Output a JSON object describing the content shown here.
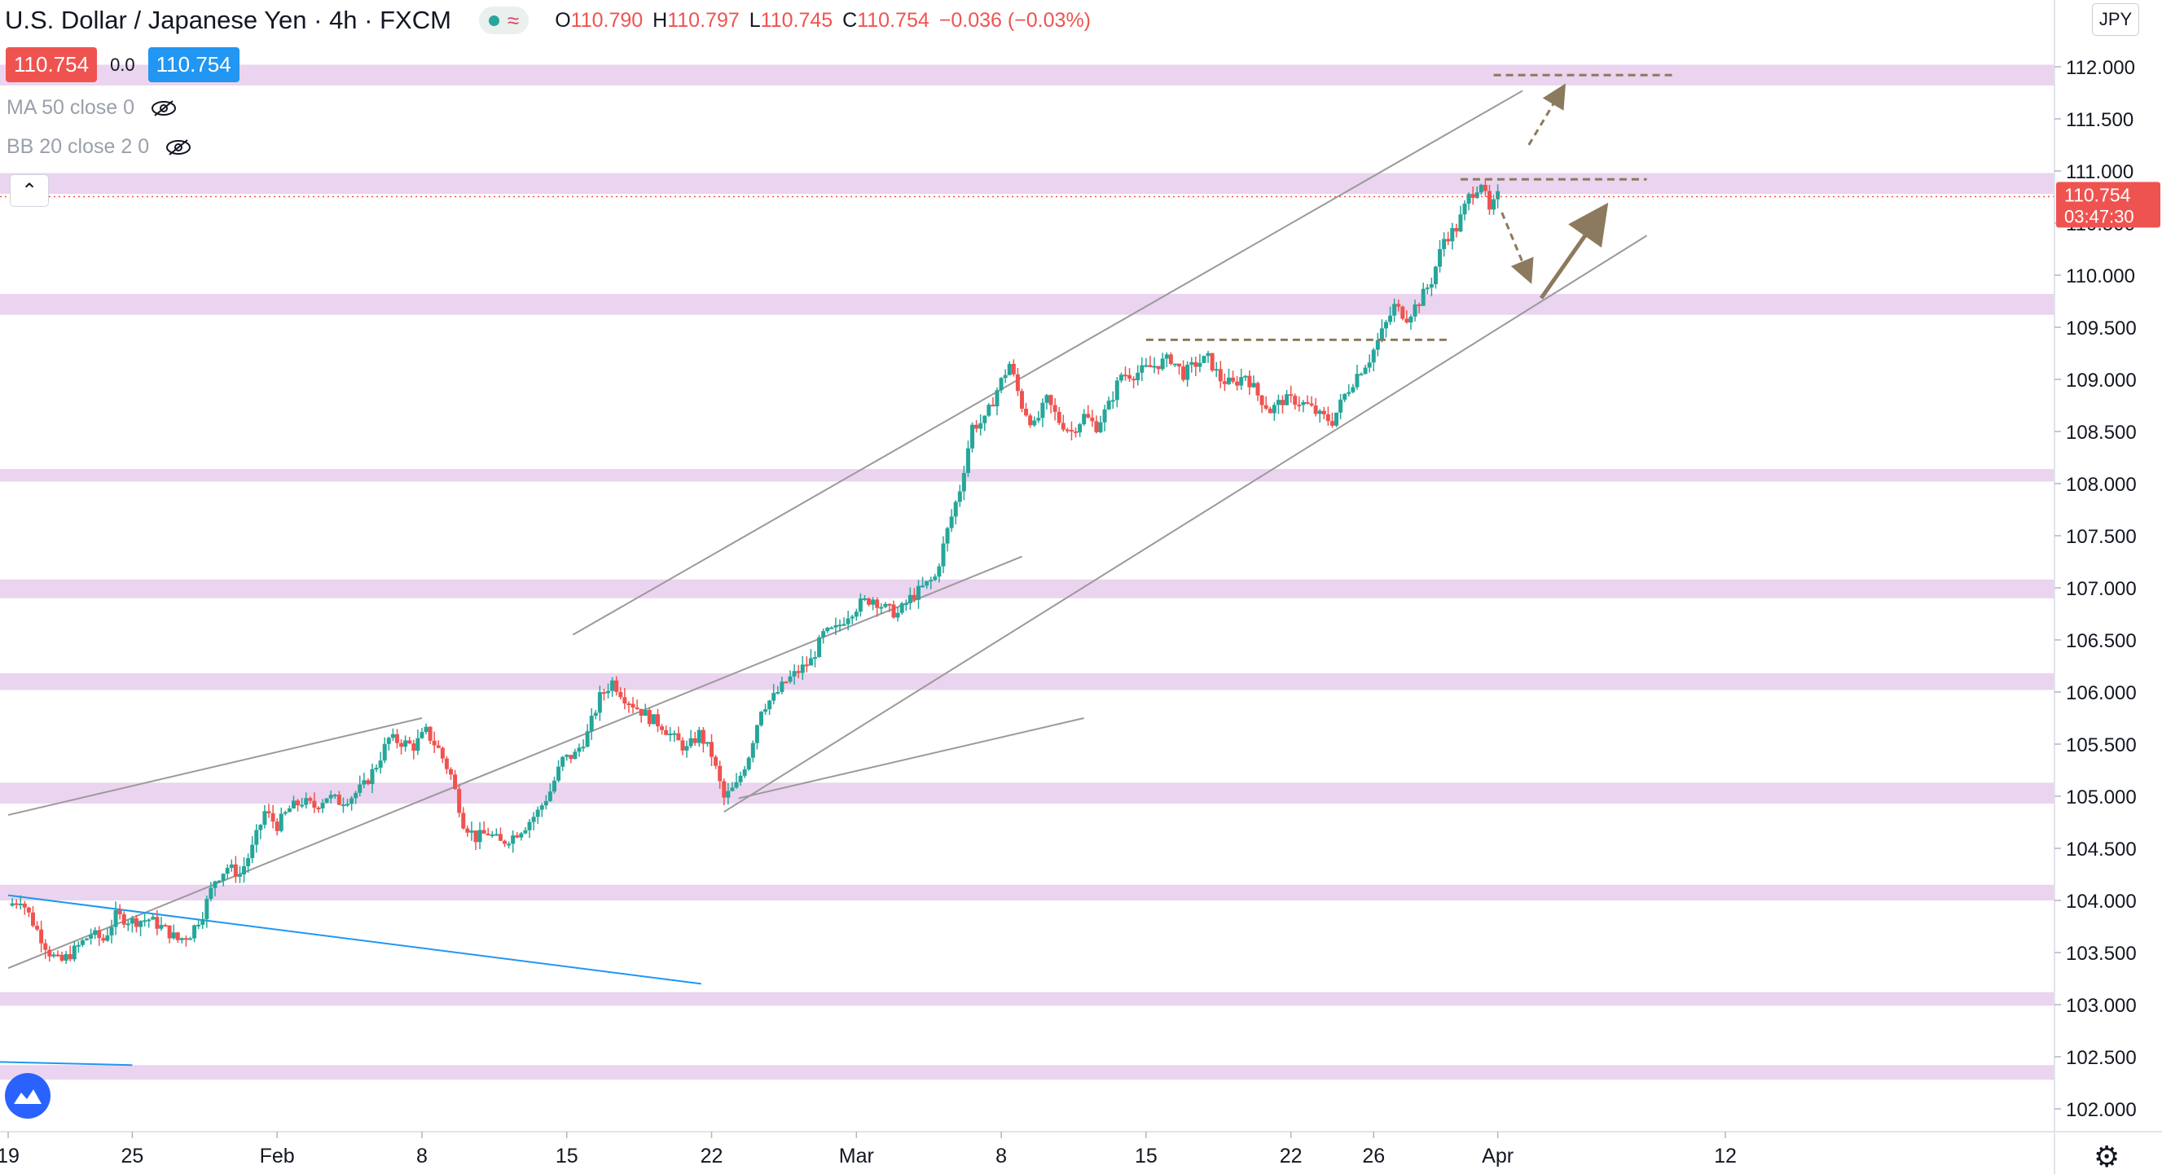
{
  "header": {
    "title": "U.S. Dollar / Japanese Yen · 4h · FXCM",
    "open_label": "O",
    "open": "110.790",
    "high_label": "H",
    "high": "110.797",
    "low_label": "L",
    "low": "110.745",
    "close_label": "C",
    "close": "110.754",
    "change": "−0.036 (−0.03%)"
  },
  "trade": {
    "sell_price": "110.754",
    "spread": "0.0",
    "buy_price": "110.754"
  },
  "indicators": [
    {
      "label": "MA 50 close 0"
    },
    {
      "label": "BB 20 close 2 0"
    }
  ],
  "currency_button": "JPY",
  "current_price_label": {
    "price": "110.754",
    "countdown": "03:47:30"
  },
  "colors": {
    "up": "#26a69a",
    "down": "#ef5350",
    "zone": "#e4c6ea",
    "channel": "#9a9a9a",
    "blue_line": "#2196f3",
    "arrow": "#8c7a5e",
    "buy_button": "#2196f3",
    "sell_button": "#ef5350",
    "logo": "#2962ff"
  },
  "icons": {
    "visibility_off": "eye-off-icon",
    "collapse": "chevron-up-icon",
    "brand": "tradingview-logo-icon",
    "settings": "gear-icon"
  },
  "chart_data": {
    "type": "candlestick",
    "title": "U.S. Dollar / Japanese Yen · 4h · FXCM",
    "xlabel": "",
    "ylabel": "",
    "ylim": [
      101.85,
      112.55
    ],
    "y_ticks": [
      "112.000",
      "111.500",
      "111.000",
      "110.500",
      "110.000",
      "109.500",
      "109.000",
      "108.500",
      "108.000",
      "107.500",
      "107.000",
      "106.500",
      "106.000",
      "105.500",
      "105.000",
      "104.500",
      "104.000",
      "103.500",
      "103.000",
      "102.500",
      "102.000"
    ],
    "x_ticks": [
      {
        "label": "19",
        "day": 0
      },
      {
        "label": "25",
        "day": 6
      },
      {
        "label": "Feb",
        "day": 13
      },
      {
        "label": "8",
        "day": 20
      },
      {
        "label": "15",
        "day": 27
      },
      {
        "label": "22",
        "day": 34
      },
      {
        "label": "Mar",
        "day": 41
      },
      {
        "label": "8",
        "day": 48
      },
      {
        "label": "15",
        "day": 55
      },
      {
        "label": "22",
        "day": 62
      },
      {
        "label": "26",
        "day": 66
      },
      {
        "label": "Apr",
        "day": 72
      },
      {
        "label": "12",
        "day": 83
      }
    ],
    "close_path": [
      [
        0.0,
        103.95
      ],
      [
        0.6,
        104.02
      ],
      [
        1.3,
        103.75
      ],
      [
        2.0,
        103.5
      ],
      [
        2.5,
        103.4
      ],
      [
        3.2,
        103.52
      ],
      [
        4.0,
        103.68
      ],
      [
        4.6,
        103.62
      ],
      [
        5.2,
        103.85
      ],
      [
        6.0,
        103.8
      ],
      [
        6.8,
        103.82
      ],
      [
        7.6,
        103.72
      ],
      [
        8.2,
        103.62
      ],
      [
        8.8,
        103.68
      ],
      [
        9.4,
        103.88
      ],
      [
        10.0,
        104.2
      ],
      [
        10.6,
        104.32
      ],
      [
        11.2,
        104.25
      ],
      [
        11.8,
        104.5
      ],
      [
        12.4,
        104.85
      ],
      [
        13.0,
        104.72
      ],
      [
        13.6,
        104.88
      ],
      [
        14.2,
        104.95
      ],
      [
        14.8,
        104.9
      ],
      [
        15.4,
        105.0
      ],
      [
        16.0,
        104.95
      ],
      [
        16.6,
        105.0
      ],
      [
        17.2,
        105.1
      ],
      [
        17.8,
        105.3
      ],
      [
        18.4,
        105.55
      ],
      [
        19.0,
        105.52
      ],
      [
        19.6,
        105.48
      ],
      [
        20.2,
        105.62
      ],
      [
        20.8,
        105.45
      ],
      [
        21.4,
        105.2
      ],
      [
        22.0,
        104.75
      ],
      [
        22.6,
        104.6
      ],
      [
        23.2,
        104.65
      ],
      [
        23.8,
        104.55
      ],
      [
        24.4,
        104.62
      ],
      [
        25.0,
        104.72
      ],
      [
        25.6,
        104.85
      ],
      [
        26.2,
        105.05
      ],
      [
        26.8,
        105.35
      ],
      [
        27.4,
        105.4
      ],
      [
        28.0,
        105.6
      ],
      [
        28.6,
        105.95
      ],
      [
        29.2,
        106.1
      ],
      [
        29.8,
        105.95
      ],
      [
        30.4,
        105.85
      ],
      [
        31.0,
        105.75
      ],
      [
        31.6,
        105.68
      ],
      [
        32.2,
        105.55
      ],
      [
        32.8,
        105.45
      ],
      [
        33.4,
        105.6
      ],
      [
        34.0,
        105.4
      ],
      [
        34.6,
        104.98
      ],
      [
        35.2,
        105.1
      ],
      [
        35.8,
        105.4
      ],
      [
        36.4,
        105.85
      ],
      [
        37.0,
        105.95
      ],
      [
        37.6,
        106.1
      ],
      [
        38.2,
        106.2
      ],
      [
        38.8,
        106.3
      ],
      [
        39.4,
        106.55
      ],
      [
        40.0,
        106.6
      ],
      [
        40.6,
        106.75
      ],
      [
        41.2,
        106.85
      ],
      [
        41.8,
        106.9
      ],
      [
        42.4,
        106.8
      ],
      [
        43.0,
        106.75
      ],
      [
        43.6,
        106.9
      ],
      [
        44.2,
        107.0
      ],
      [
        44.8,
        107.1
      ],
      [
        45.4,
        107.55
      ],
      [
        46.0,
        107.95
      ],
      [
        46.6,
        108.55
      ],
      [
        47.2,
        108.6
      ],
      [
        47.8,
        108.9
      ],
      [
        48.4,
        109.15
      ],
      [
        49.0,
        108.75
      ],
      [
        49.6,
        108.55
      ],
      [
        50.2,
        108.8
      ],
      [
        50.8,
        108.6
      ],
      [
        51.4,
        108.5
      ],
      [
        52.0,
        108.65
      ],
      [
        52.6,
        108.55
      ],
      [
        53.2,
        108.75
      ],
      [
        53.8,
        109.05
      ],
      [
        54.4,
        109.05
      ],
      [
        55.0,
        109.1
      ],
      [
        55.6,
        109.15
      ],
      [
        56.2,
        109.2
      ],
      [
        56.8,
        109.05
      ],
      [
        57.4,
        109.15
      ],
      [
        58.0,
        109.2
      ],
      [
        58.6,
        109.0
      ],
      [
        59.2,
        108.95
      ],
      [
        59.8,
        109.05
      ],
      [
        60.4,
        108.85
      ],
      [
        61.0,
        108.7
      ],
      [
        61.6,
        108.8
      ],
      [
        62.2,
        108.8
      ],
      [
        62.8,
        108.75
      ],
      [
        63.4,
        108.65
      ],
      [
        64.0,
        108.6
      ],
      [
        64.6,
        108.85
      ],
      [
        65.2,
        109.05
      ],
      [
        65.8,
        109.2
      ],
      [
        66.4,
        109.45
      ],
      [
        67.0,
        109.7
      ],
      [
        67.6,
        109.6
      ],
      [
        68.2,
        109.75
      ],
      [
        68.8,
        109.95
      ],
      [
        69.4,
        110.35
      ],
      [
        70.0,
        110.45
      ],
      [
        70.6,
        110.75
      ],
      [
        71.2,
        110.9
      ],
      [
        71.6,
        110.6
      ],
      [
        72.0,
        110.754
      ]
    ],
    "channels": [
      {
        "name": "",
        "from": [
          0.0,
          104.82
        ],
        "to": [
          20.0,
          105.75
        ]
      },
      {
        "name": "",
        "from": [
          0.0,
          103.35
        ],
        "to": [
          49.0,
          107.3
        ]
      },
      {
        "name": "",
        "from": [
          27.3,
          106.55
        ],
        "to": [
          73.2,
          111.77
        ]
      },
      {
        "name": "",
        "from": [
          34.6,
          104.85
        ],
        "to": [
          79.2,
          110.38
        ]
      },
      {
        "name": "",
        "from": [
          35.3,
          104.98
        ],
        "to": [
          52.0,
          105.75
        ]
      },
      {
        "name": "",
        "from": [
          0.0,
          104.05
        ],
        "to": [
          33.5,
          103.2
        ]
      }
    ],
    "zones": [
      {
        "low": 111.82,
        "high": 112.02
      },
      {
        "low": 110.78,
        "high": 110.98
      },
      {
        "low": 109.62,
        "high": 109.82
      },
      {
        "low": 108.02,
        "high": 108.14
      },
      {
        "low": 106.9,
        "high": 107.08
      },
      {
        "low": 106.02,
        "high": 106.18
      },
      {
        "low": 104.93,
        "high": 105.13
      },
      {
        "low": 104.0,
        "high": 104.15
      },
      {
        "low": 102.99,
        "high": 103.12
      },
      {
        "low": 102.28,
        "high": 102.42
      }
    ],
    "dashed_levels": [
      {
        "price": 111.92,
        "from": 71.8,
        "to": 80.6
      },
      {
        "price": 110.92,
        "from": 70.2,
        "to": 79.2
      },
      {
        "price": 109.38,
        "from": 55.0,
        "to": 69.6
      }
    ],
    "arrows": [
      {
        "style": "dashed",
        "from": [
          73.5,
          111.25
        ],
        "to": [
          75.1,
          111.78
        ]
      },
      {
        "style": "dashed",
        "from": [
          72.2,
          110.6
        ],
        "to": [
          73.5,
          109.98
        ]
      },
      {
        "style": "solid",
        "from": [
          74.1,
          109.78
        ],
        "to": [
          77.0,
          110.6
        ]
      }
    ],
    "last_price": 110.754
  }
}
